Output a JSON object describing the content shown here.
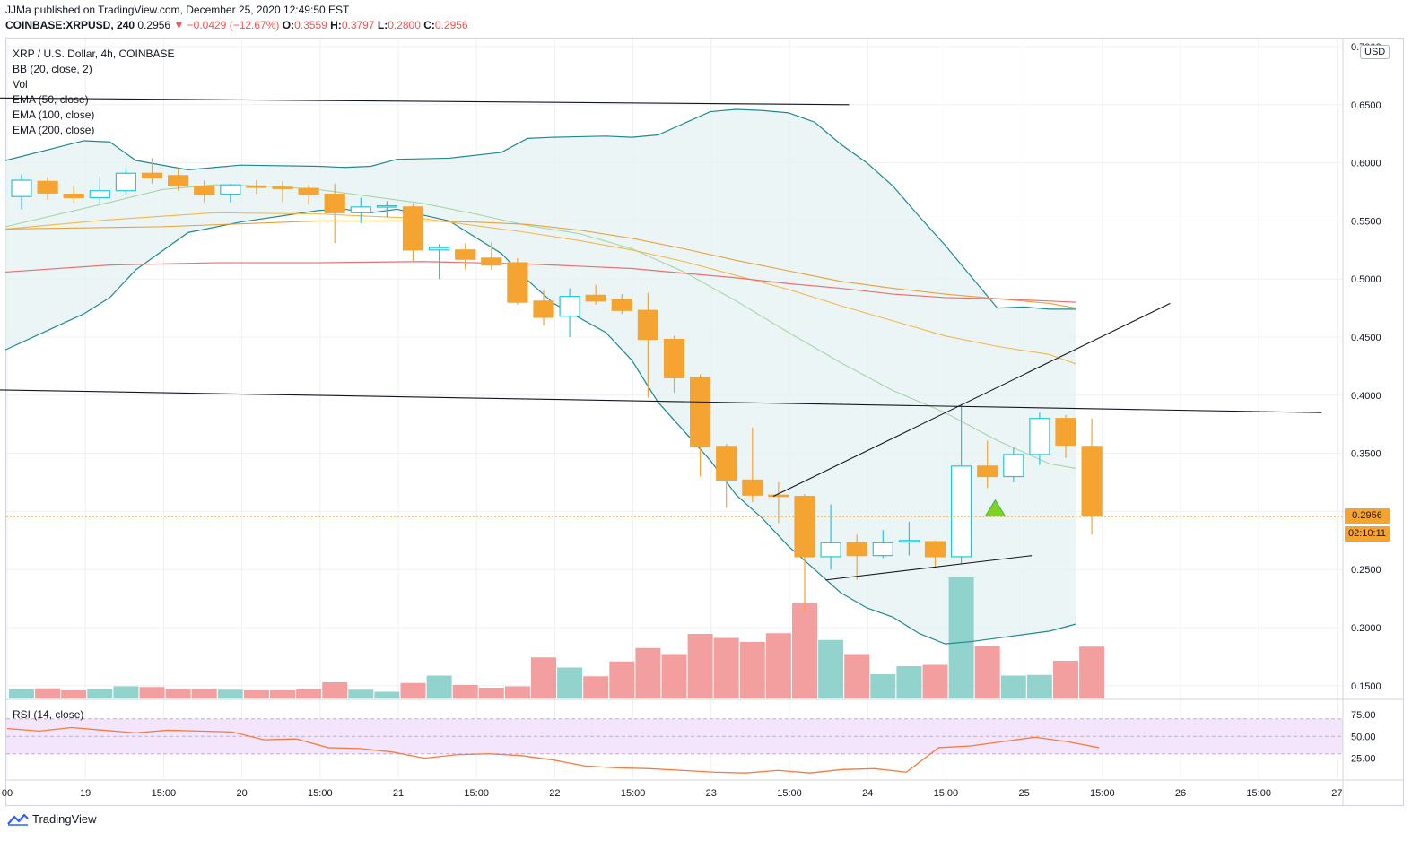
{
  "header": {
    "published_line": "JJMa published on TradingView.com, December 25, 2020 12:49:50 EST",
    "symbol": "COINBASE:XRPUSD, 240",
    "last": "0.2956",
    "change": "▼ −0.0429 (−12.67%)",
    "o_label": "O:",
    "o_value": "0.3559",
    "h_label": "H:",
    "h_value": "0.3797",
    "l_label": "L:",
    "l_value": "0.2800",
    "c_label": "C:",
    "c_value": "0.2956"
  },
  "legend": {
    "title": "XRP / U.S. Dollar, 4h, COINBASE",
    "bb": "BB (20, close, 2)",
    "vol": "Vol",
    "ema50": "EMA (50, close)",
    "ema100": "EMA (100, close)",
    "ema200": "EMA (200, close)",
    "rsi": "RSI (14, close)"
  },
  "price_axis": {
    "currency": "USD",
    "current_price": "0.2956",
    "countdown": "02:10:11"
  },
  "brand": {
    "name": "TradingView"
  },
  "colors": {
    "up": "#26c6da",
    "down": "#f5a431",
    "vol_up": "#80cbc4",
    "vol_down": "#f28e8e",
    "bb_line": "#1f8a94",
    "bb_fill": "#e6f2f1",
    "ema50": "#a5d6a7",
    "ema100": "#f2b84b",
    "ema200": "#e57373",
    "rsi_line": "#f47c3c",
    "rsi_band": "#f3e5fb"
  },
  "chart_data": {
    "type": "candlestick",
    "x_tick_labels": [
      "00",
      "19",
      "15:00",
      "20",
      "15:00",
      "21",
      "15:00",
      "22",
      "15:00",
      "23",
      "15:00",
      "24",
      "15:00",
      "25",
      "15:00",
      "26",
      "15:00",
      "27"
    ],
    "y_tick_labels": [
      "0.7000",
      "0.6500",
      "0.6000",
      "0.5500",
      "0.5000",
      "0.4500",
      "0.4000",
      "0.3500",
      "0.3000",
      "0.2500",
      "0.2000",
      "0.1500"
    ],
    "ylim": [
      0.14,
      0.7
    ],
    "rsi_ticks": [
      "75.00",
      "50.00",
      "25.00"
    ],
    "rsi_band": [
      30,
      70
    ],
    "candles": [
      {
        "o": 0.571,
        "h": 0.59,
        "l": 0.56,
        "c": 0.585
      },
      {
        "o": 0.584,
        "h": 0.588,
        "l": 0.568,
        "c": 0.574
      },
      {
        "o": 0.573,
        "h": 0.58,
        "l": 0.566,
        "c": 0.57
      },
      {
        "o": 0.57,
        "h": 0.588,
        "l": 0.565,
        "c": 0.576
      },
      {
        "o": 0.576,
        "h": 0.596,
        "l": 0.572,
        "c": 0.591
      },
      {
        "o": 0.591,
        "h": 0.604,
        "l": 0.582,
        "c": 0.587
      },
      {
        "o": 0.589,
        "h": 0.596,
        "l": 0.576,
        "c": 0.58
      },
      {
        "o": 0.58,
        "h": 0.585,
        "l": 0.566,
        "c": 0.573
      },
      {
        "o": 0.573,
        "h": 0.582,
        "l": 0.566,
        "c": 0.581
      },
      {
        "o": 0.58,
        "h": 0.585,
        "l": 0.573,
        "c": 0.579
      },
      {
        "o": 0.579,
        "h": 0.584,
        "l": 0.566,
        "c": 0.578
      },
      {
        "o": 0.578,
        "h": 0.581,
        "l": 0.564,
        "c": 0.573
      },
      {
        "o": 0.573,
        "h": 0.582,
        "l": 0.531,
        "c": 0.557
      },
      {
        "o": 0.557,
        "h": 0.57,
        "l": 0.548,
        "c": 0.562
      },
      {
        "o": 0.562,
        "h": 0.567,
        "l": 0.553,
        "c": 0.563
      },
      {
        "o": 0.562,
        "h": 0.565,
        "l": 0.515,
        "c": 0.525
      },
      {
        "o": 0.525,
        "h": 0.53,
        "l": 0.5,
        "c": 0.527
      },
      {
        "o": 0.525,
        "h": 0.531,
        "l": 0.508,
        "c": 0.517
      },
      {
        "o": 0.518,
        "h": 0.532,
        "l": 0.508,
        "c": 0.512
      },
      {
        "o": 0.514,
        "h": 0.518,
        "l": 0.478,
        "c": 0.48
      },
      {
        "o": 0.481,
        "h": 0.49,
        "l": 0.46,
        "c": 0.467
      },
      {
        "o": 0.468,
        "h": 0.492,
        "l": 0.45,
        "c": 0.485
      },
      {
        "o": 0.486,
        "h": 0.495,
        "l": 0.478,
        "c": 0.481
      },
      {
        "o": 0.482,
        "h": 0.487,
        "l": 0.47,
        "c": 0.473
      },
      {
        "o": 0.473,
        "h": 0.488,
        "l": 0.398,
        "c": 0.448
      },
      {
        "o": 0.448,
        "h": 0.451,
        "l": 0.402,
        "c": 0.415
      },
      {
        "o": 0.415,
        "h": 0.418,
        "l": 0.33,
        "c": 0.356
      },
      {
        "o": 0.356,
        "h": 0.358,
        "l": 0.303,
        "c": 0.327
      },
      {
        "o": 0.327,
        "h": 0.372,
        "l": 0.308,
        "c": 0.314
      },
      {
        "o": 0.314,
        "h": 0.325,
        "l": 0.29,
        "c": 0.313
      },
      {
        "o": 0.313,
        "h": 0.315,
        "l": 0.213,
        "c": 0.261
      },
      {
        "o": 0.261,
        "h": 0.306,
        "l": 0.25,
        "c": 0.273
      },
      {
        "o": 0.273,
        "h": 0.28,
        "l": 0.241,
        "c": 0.262
      },
      {
        "o": 0.262,
        "h": 0.284,
        "l": 0.26,
        "c": 0.273
      },
      {
        "o": 0.274,
        "h": 0.291,
        "l": 0.262,
        "c": 0.275
      },
      {
        "o": 0.274,
        "h": 0.275,
        "l": 0.251,
        "c": 0.261
      },
      {
        "o": 0.261,
        "h": 0.392,
        "l": 0.255,
        "c": 0.339
      },
      {
        "o": 0.339,
        "h": 0.361,
        "l": 0.32,
        "c": 0.33
      },
      {
        "o": 0.33,
        "h": 0.355,
        "l": 0.325,
        "c": 0.349
      },
      {
        "o": 0.349,
        "h": 0.385,
        "l": 0.34,
        "c": 0.38
      },
      {
        "o": 0.38,
        "h": 0.383,
        "l": 0.346,
        "c": 0.357
      },
      {
        "o": 0.356,
        "h": 0.38,
        "l": 0.28,
        "c": 0.296
      }
    ],
    "volume": [
      14,
      15,
      12,
      14,
      18,
      17,
      14,
      14,
      13,
      12,
      12,
      14,
      24,
      13,
      10,
      23,
      34,
      20,
      16,
      18,
      61,
      46,
      33,
      55,
      75,
      66,
      96,
      90,
      84,
      97,
      142,
      87,
      66,
      36,
      48,
      50,
      180,
      78,
      34,
      35,
      56,
      77
    ],
    "bb_upper": [
      [
        0,
        0.602
      ],
      [
        3,
        0.619
      ],
      [
        4,
        0.618
      ],
      [
        5,
        0.602
      ],
      [
        7,
        0.594
      ],
      [
        9,
        0.598
      ],
      [
        12,
        0.597
      ],
      [
        13,
        0.596
      ],
      [
        14,
        0.597
      ],
      [
        15,
        0.603
      ],
      [
        17,
        0.604
      ],
      [
        19,
        0.609
      ],
      [
        20,
        0.621
      ],
      [
        21,
        0.622
      ],
      [
        23,
        0.623
      ],
      [
        24,
        0.622
      ],
      [
        25,
        0.624
      ],
      [
        27,
        0.644
      ],
      [
        28,
        0.646
      ],
      [
        29,
        0.645
      ],
      [
        30,
        0.643
      ],
      [
        31,
        0.635
      ],
      [
        32,
        0.616
      ],
      [
        33,
        0.6
      ],
      [
        34,
        0.58
      ],
      [
        35,
        0.554
      ],
      [
        36,
        0.529
      ],
      [
        37,
        0.502
      ],
      [
        38,
        0.475
      ],
      [
        39,
        0.476
      ],
      [
        40,
        0.474
      ],
      [
        41,
        0.474
      ]
    ],
    "bb_lower": [
      [
        0,
        0.439
      ],
      [
        3,
        0.47
      ],
      [
        4,
        0.484
      ],
      [
        5,
        0.508
      ],
      [
        7,
        0.54
      ],
      [
        9,
        0.549
      ],
      [
        12,
        0.559
      ],
      [
        13,
        0.56
      ],
      [
        14,
        0.557
      ],
      [
        15,
        0.56
      ],
      [
        17,
        0.55
      ],
      [
        19,
        0.522
      ],
      [
        20,
        0.499
      ],
      [
        21,
        0.479
      ],
      [
        23,
        0.454
      ],
      [
        24,
        0.43
      ],
      [
        25,
        0.394
      ],
      [
        27,
        0.344
      ],
      [
        28,
        0.314
      ],
      [
        29,
        0.294
      ],
      [
        30,
        0.27
      ],
      [
        31,
        0.25
      ],
      [
        32,
        0.23
      ],
      [
        33,
        0.217
      ],
      [
        34,
        0.209
      ],
      [
        35,
        0.195
      ],
      [
        36,
        0.186
      ],
      [
        37,
        0.188
      ],
      [
        38,
        0.191
      ],
      [
        39,
        0.194
      ],
      [
        40,
        0.197
      ],
      [
        41,
        0.203
      ]
    ],
    "ema50": [
      [
        0,
        0.545
      ],
      [
        4,
        0.566
      ],
      [
        6,
        0.577
      ],
      [
        8,
        0.581
      ],
      [
        10,
        0.58
      ],
      [
        12,
        0.577
      ],
      [
        14,
        0.571
      ],
      [
        16,
        0.565
      ],
      [
        18,
        0.556
      ],
      [
        20,
        0.546
      ],
      [
        22,
        0.539
      ],
      [
        24,
        0.526
      ],
      [
        26,
        0.506
      ],
      [
        28,
        0.481
      ],
      [
        30,
        0.454
      ],
      [
        32,
        0.428
      ],
      [
        34,
        0.404
      ],
      [
        36,
        0.385
      ],
      [
        38,
        0.361
      ],
      [
        40,
        0.341
      ],
      [
        41,
        0.337
      ]
    ],
    "ema100": [
      [
        0,
        0.543
      ],
      [
        4,
        0.551
      ],
      [
        8,
        0.557
      ],
      [
        12,
        0.556
      ],
      [
        16,
        0.552
      ],
      [
        20,
        0.54
      ],
      [
        22,
        0.533
      ],
      [
        24,
        0.525
      ],
      [
        26,
        0.515
      ],
      [
        28,
        0.503
      ],
      [
        30,
        0.491
      ],
      [
        32,
        0.477
      ],
      [
        34,
        0.464
      ],
      [
        36,
        0.451
      ],
      [
        38,
        0.442
      ],
      [
        40,
        0.435
      ],
      [
        41,
        0.427
      ]
    ],
    "ema100b": [
      [
        0,
        0.543
      ],
      [
        6,
        0.545
      ],
      [
        12,
        0.55
      ],
      [
        16,
        0.55
      ],
      [
        18,
        0.549
      ],
      [
        20,
        0.547
      ],
      [
        22,
        0.542
      ],
      [
        24,
        0.535
      ],
      [
        26,
        0.526
      ],
      [
        28,
        0.516
      ],
      [
        30,
        0.507
      ],
      [
        32,
        0.498
      ],
      [
        34,
        0.492
      ],
      [
        36,
        0.487
      ],
      [
        38,
        0.483
      ],
      [
        40,
        0.479
      ],
      [
        41,
        0.475
      ]
    ],
    "ema200": [
      [
        0,
        0.506
      ],
      [
        4,
        0.512
      ],
      [
        8,
        0.514
      ],
      [
        12,
        0.514
      ],
      [
        16,
        0.515
      ],
      [
        18,
        0.514
      ],
      [
        20,
        0.513
      ],
      [
        22,
        0.511
      ],
      [
        24,
        0.509
      ],
      [
        26,
        0.505
      ],
      [
        28,
        0.501
      ],
      [
        30,
        0.496
      ],
      [
        32,
        0.492
      ],
      [
        34,
        0.487
      ],
      [
        36,
        0.484
      ],
      [
        38,
        0.483
      ],
      [
        40,
        0.481
      ],
      [
        41,
        0.48
      ]
    ],
    "rsi": [
      [
        0,
        59
      ],
      [
        2,
        56
      ],
      [
        4,
        60
      ],
      [
        6,
        57
      ],
      [
        8,
        54
      ],
      [
        10,
        57
      ],
      [
        12,
        56
      ],
      [
        14,
        55
      ],
      [
        16,
        46
      ],
      [
        18,
        47
      ],
      [
        20,
        37
      ],
      [
        22,
        36
      ],
      [
        24,
        32
      ],
      [
        26,
        25
      ],
      [
        28,
        29
      ],
      [
        30,
        30
      ],
      [
        32,
        28
      ],
      [
        34,
        23
      ],
      [
        36,
        16
      ],
      [
        38,
        14
      ],
      [
        40,
        13
      ],
      [
        42,
        11
      ],
      [
        44,
        9
      ],
      [
        46,
        8
      ],
      [
        48,
        11
      ],
      [
        50,
        8
      ],
      [
        52,
        12
      ],
      [
        54,
        13
      ],
      [
        56,
        9
      ],
      [
        58,
        37
      ],
      [
        60,
        39
      ],
      [
        62,
        44
      ],
      [
        64,
        49
      ],
      [
        66,
        44
      ],
      [
        68,
        37
      ]
    ],
    "trend_lines": [
      {
        "from": [
          -2.0,
          0.656
        ],
        "to": [
          31.7,
          0.65
        ]
      },
      {
        "from": [
          -2.0,
          0.405
        ],
        "to": [
          49.8,
          0.385
        ]
      },
      {
        "from": [
          28.8,
          0.313
        ],
        "to": [
          44.0,
          0.479
        ]
      },
      {
        "from": [
          30.8,
          0.241
        ],
        "to": [
          38.7,
          0.262
        ]
      }
    ],
    "signal_marker": {
      "x": 37.3,
      "y": 0.296
    }
  }
}
